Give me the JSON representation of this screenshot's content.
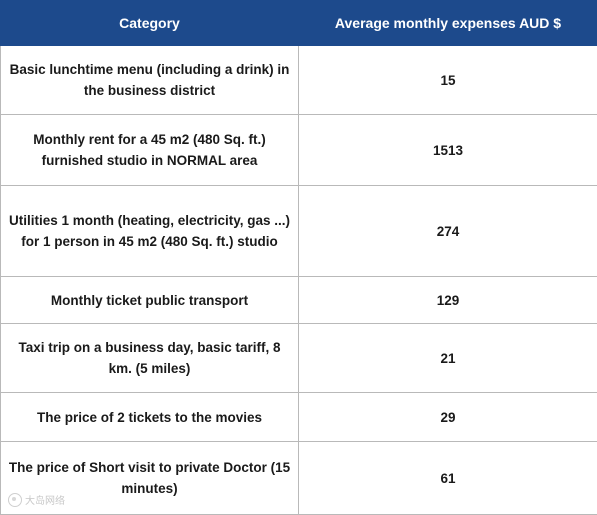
{
  "chart_data": {
    "type": "table",
    "columns": [
      "Category",
      "Average monthly expenses AUD $"
    ],
    "rows": [
      {
        "category": "Basic lunchtime menu (including a drink) in the business district",
        "value": "15"
      },
      {
        "category": "Monthly rent for a 45 m2 (480 Sq. ft.) furnished studio in NORMAL area",
        "value": "1513"
      },
      {
        "category": "Utilities 1 month (heating, electricity, gas ...) for 1 person in 45 m2 (480 Sq. ft.) studio",
        "value": "274"
      },
      {
        "category": "Monthly ticket public transport",
        "value": "129"
      },
      {
        "category": "Taxi trip on a business day, basic tariff, 8 km. (5 miles)",
        "value": "21"
      },
      {
        "category": "The price of 2 tickets to the movies",
        "value": "29"
      },
      {
        "category": "The price of Short visit to private Doctor (15 minutes)",
        "value": "61"
      }
    ]
  },
  "watermark": {
    "icon": "weibo-logo-icon",
    "text": "大岛网络"
  }
}
